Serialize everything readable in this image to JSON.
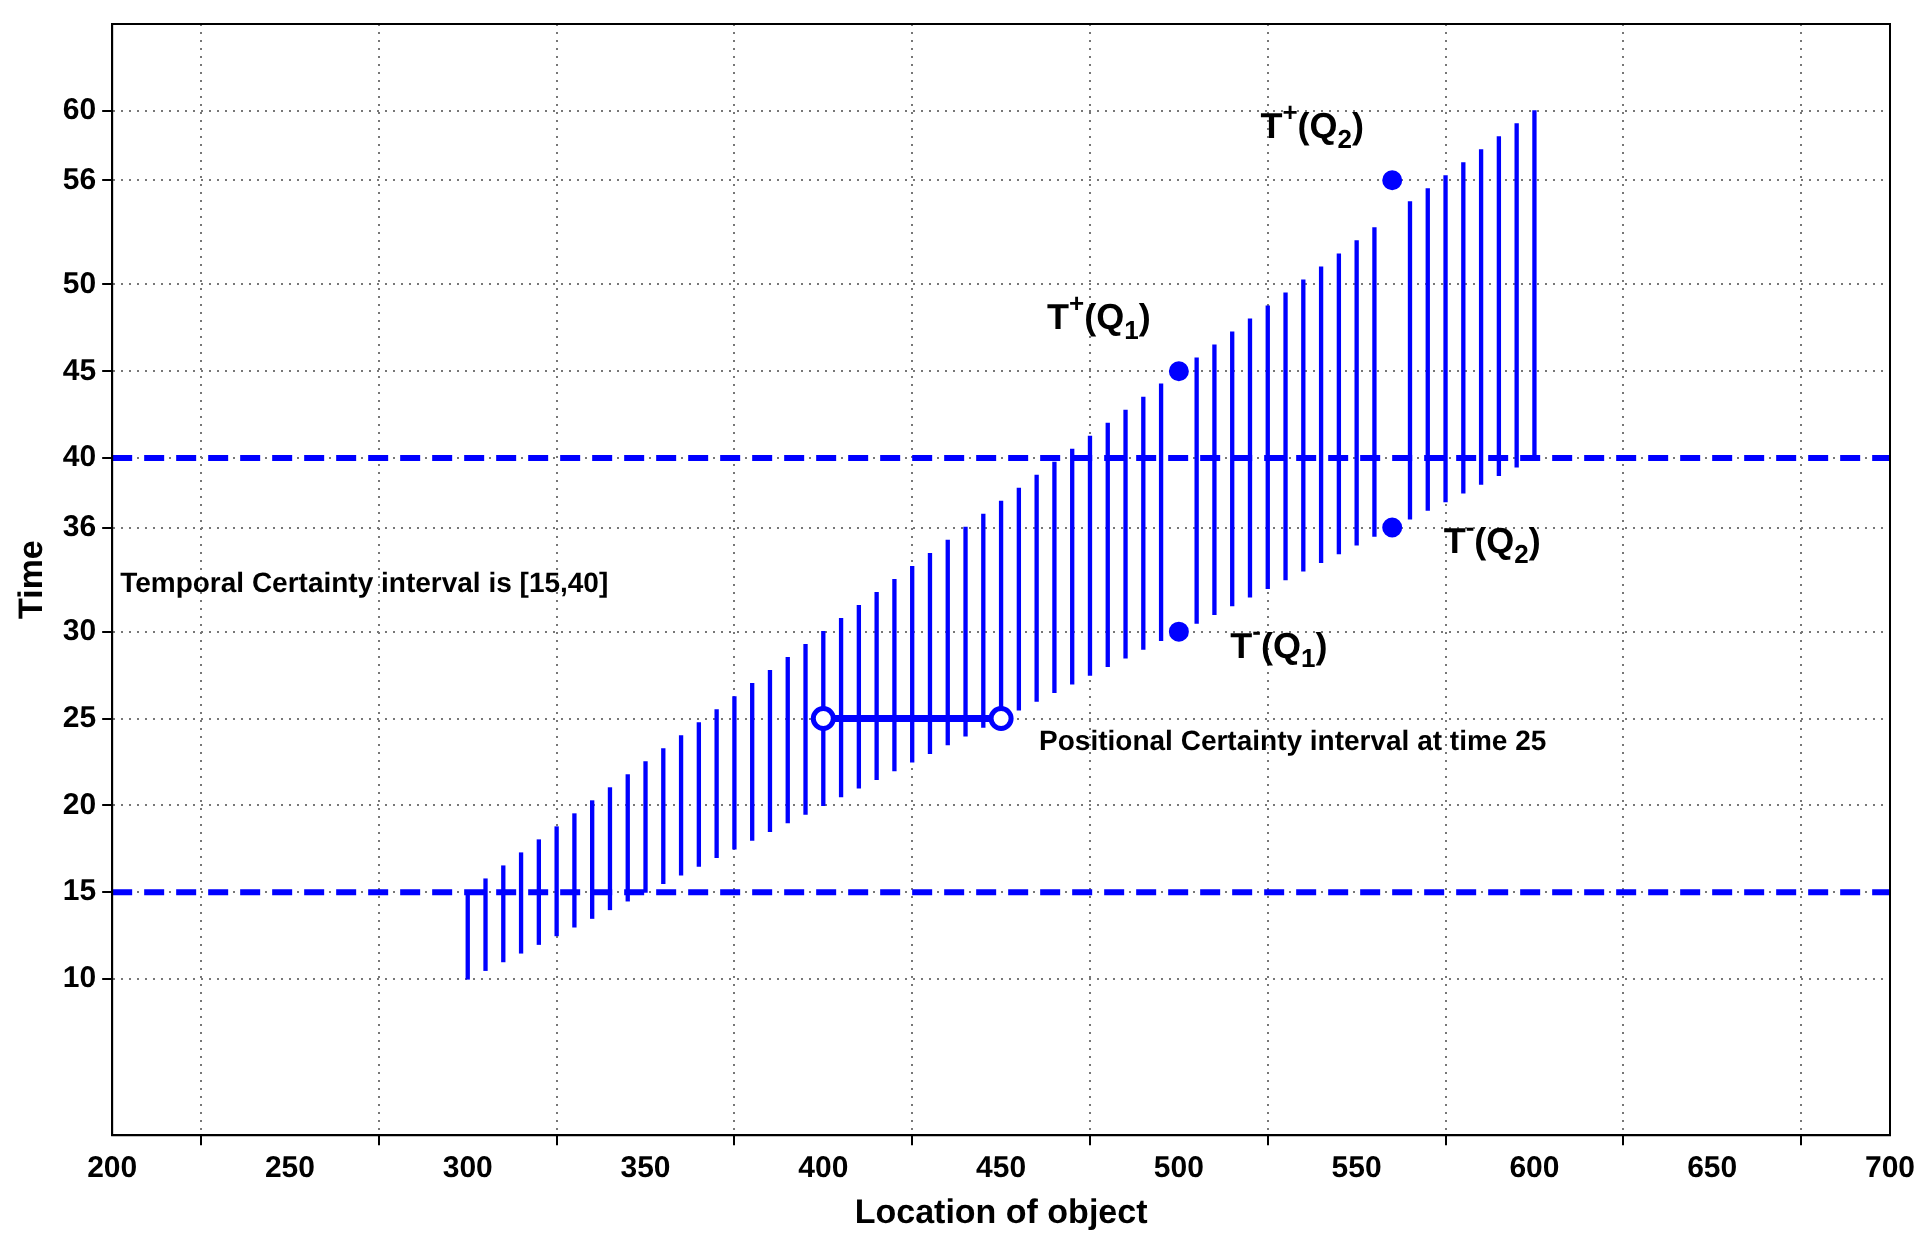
{
  "chart_data": {
    "type": "bar",
    "xlabel": "Location of object",
    "ylabel": "Time",
    "xlim": [
      200,
      700
    ],
    "xticks": [
      200,
      250,
      300,
      350,
      400,
      450,
      500,
      550,
      600,
      650,
      700
    ],
    "ylim": [
      1,
      65
    ],
    "yticks": [
      10,
      15,
      20,
      25,
      30,
      36,
      40,
      45,
      50,
      56,
      60
    ],
    "grid": true,
    "legend": false,
    "series": [
      {
        "color": "#0000ff",
        "x": [
          300,
          305,
          310,
          315,
          320,
          325,
          330,
          335,
          340,
          345,
          350,
          355,
          360,
          365,
          370,
          375,
          380,
          385,
          390,
          395,
          400,
          405,
          410,
          415,
          420,
          425,
          430,
          435,
          440,
          445,
          450,
          455,
          460,
          465,
          470,
          475,
          480,
          485,
          490,
          495,
          505,
          510,
          515,
          520,
          525,
          530,
          535,
          540,
          545,
          550,
          555,
          565,
          570,
          575,
          580,
          585,
          590,
          595,
          600
        ],
        "base": [
          10,
          10.5,
          11,
          11.5,
          12,
          12.5,
          13,
          13.5,
          14,
          14.5,
          15,
          15.5,
          16,
          16.5,
          17,
          17.5,
          18,
          18.5,
          19,
          19.5,
          20,
          20.5,
          21,
          21.5,
          22,
          22.5,
          23,
          23.5,
          24,
          24.5,
          25,
          25.5,
          26,
          26.5,
          27,
          27.5,
          28,
          28.5,
          29,
          29.5,
          30.5,
          31,
          31.5,
          32,
          32.5,
          33,
          33.5,
          34,
          34.5,
          35,
          35.5,
          36.5,
          37,
          37.5,
          38,
          38.5,
          39,
          39.5,
          40
        ],
        "values": [
          5,
          5.25,
          5.5,
          5.75,
          6,
          6.25,
          6.5,
          6.75,
          7,
          7.25,
          7.5,
          7.75,
          8,
          8.25,
          8.5,
          8.75,
          9,
          9.25,
          9.5,
          9.75,
          10,
          10.25,
          10.5,
          10.75,
          11,
          11.25,
          11.5,
          11.75,
          12,
          12.25,
          12.5,
          12.75,
          13,
          13.25,
          13.5,
          13.75,
          14,
          14.25,
          14.5,
          14.75,
          15.25,
          15.5,
          15.75,
          16,
          16.25,
          16.5,
          16.75,
          17,
          17.25,
          17.5,
          17.75,
          18.25,
          18.5,
          18.75,
          19,
          19.25,
          19.5,
          19.75,
          20
        ]
      },
      {
        "type": "scatter",
        "color": "#0000ff",
        "marker": "circle",
        "x": [
          500,
          500,
          560,
          560
        ],
        "values": [
          45,
          30,
          56,
          36
        ]
      },
      {
        "type": "line",
        "color": "#0000ff",
        "marker": "circle",
        "x": [
          400,
          450
        ],
        "values": [
          25,
          25
        ]
      }
    ],
    "ref_lines": [
      {
        "axis": "y",
        "value": 15,
        "color": "#0000ff",
        "line_style": "dashed"
      },
      {
        "axis": "y",
        "value": 40,
        "color": "#0000ff",
        "line_style": "dashed"
      }
    ],
    "annotations": [
      {
        "text": "T$^{+}$(Q$_{1}$)",
        "x": 500,
        "y": 45
      },
      {
        "text": "T$^{-}$(Q$_{1}$)",
        "x": 500,
        "y": 30
      },
      {
        "text": "T$^{+}$(Q$_{2}$)",
        "x": 560,
        "y": 56
      },
      {
        "text": "T$^{-}$(Q$_{2}$)",
        "x": 560,
        "y": 36
      },
      "Temporal Certainty interval is [15,40]",
      {
        "text": "Positional Certainty interval at time 25",
        "x": 450,
        "y": 25
      }
    ]
  }
}
